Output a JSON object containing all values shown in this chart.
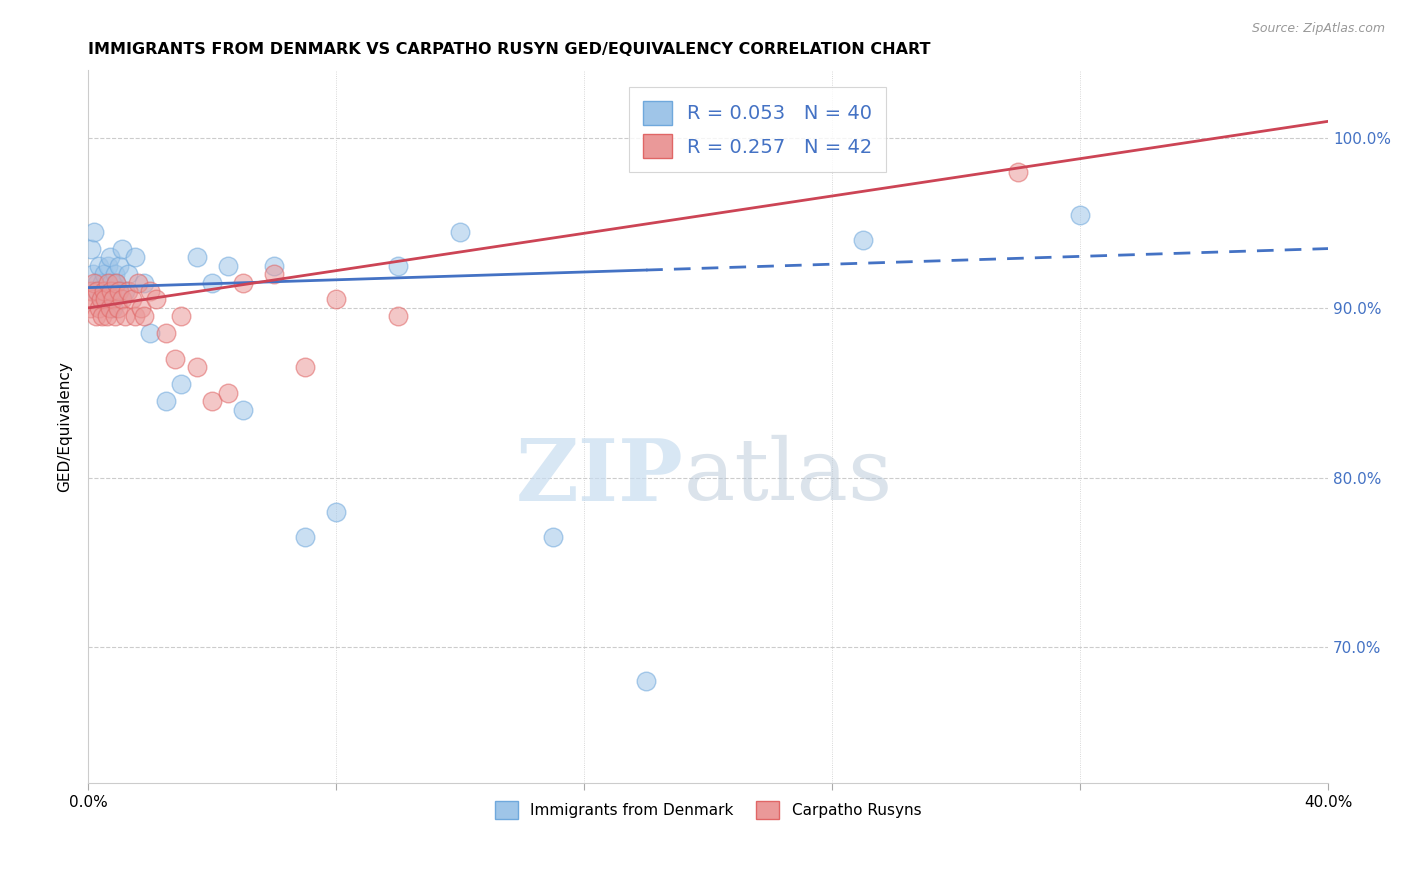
{
  "title": "IMMIGRANTS FROM DENMARK VS CARPATHO RUSYN GED/EQUIVALENCY CORRELATION CHART",
  "source": "Source: ZipAtlas.com",
  "ylabel": "GED/Equivalency",
  "legend1_label": "Immigrants from Denmark",
  "legend2_label": "Carpatho Rusyns",
  "R1": 0.053,
  "N1": 40,
  "R2": 0.257,
  "N2": 42,
  "xlim": [
    0.0,
    40.0
  ],
  "ylim": [
    62.0,
    104.0
  ],
  "yticks": [
    70.0,
    80.0,
    90.0,
    100.0
  ],
  "ytick_labels": [
    "70.0%",
    "80.0%",
    "90.0%",
    "100.0%"
  ],
  "xticks": [
    0.0,
    8.0,
    16.0,
    24.0,
    32.0,
    40.0
  ],
  "watermark_zip": "ZIP",
  "watermark_atlas": "atlas",
  "blue_color": "#9fc5e8",
  "pink_color": "#ea9999",
  "blue_edge_color": "#6fa8dc",
  "pink_edge_color": "#e06666",
  "blue_line_color": "#4472c4",
  "pink_line_color": "#cc4455",
  "denmark_x": [
    0.1,
    0.15,
    0.2,
    0.25,
    0.3,
    0.35,
    0.4,
    0.45,
    0.5,
    0.55,
    0.6,
    0.65,
    0.7,
    0.75,
    0.8,
    0.85,
    0.9,
    0.95,
    1.0,
    1.1,
    1.2,
    1.3,
    1.5,
    1.8,
    2.0,
    2.5,
    3.0,
    3.5,
    4.0,
    4.5,
    5.0,
    6.0,
    7.0,
    8.0,
    10.0,
    12.0,
    15.0,
    18.0,
    25.0,
    32.0
  ],
  "denmark_y": [
    93.5,
    92.0,
    94.5,
    91.0,
    91.5,
    92.5,
    90.5,
    91.5,
    92.0,
    91.0,
    90.5,
    92.5,
    93.0,
    91.5,
    90.0,
    92.0,
    91.5,
    91.0,
    92.5,
    93.5,
    91.0,
    92.0,
    93.0,
    91.5,
    88.5,
    84.5,
    85.5,
    93.0,
    91.5,
    92.5,
    84.0,
    92.5,
    76.5,
    78.0,
    92.5,
    94.5,
    76.5,
    68.0,
    94.0,
    95.5
  ],
  "rusyn_x": [
    0.05,
    0.1,
    0.15,
    0.2,
    0.25,
    0.3,
    0.35,
    0.4,
    0.45,
    0.5,
    0.55,
    0.6,
    0.65,
    0.7,
    0.75,
    0.8,
    0.85,
    0.9,
    0.95,
    1.0,
    1.1,
    1.2,
    1.3,
    1.4,
    1.5,
    1.6,
    1.7,
    1.8,
    2.0,
    2.2,
    2.5,
    2.8,
    3.0,
    3.5,
    4.0,
    4.5,
    5.0,
    6.0,
    7.0,
    8.0,
    10.0,
    30.0
  ],
  "rusyn_y": [
    90.0,
    91.0,
    90.5,
    91.5,
    89.5,
    91.0,
    90.0,
    90.5,
    89.5,
    91.0,
    90.5,
    89.5,
    91.5,
    90.0,
    91.0,
    90.5,
    89.5,
    91.5,
    90.0,
    91.0,
    90.5,
    89.5,
    91.0,
    90.5,
    89.5,
    91.5,
    90.0,
    89.5,
    91.0,
    90.5,
    88.5,
    87.0,
    89.5,
    86.5,
    84.5,
    85.0,
    91.5,
    92.0,
    86.5,
    90.5,
    89.5,
    98.0
  ],
  "trend_blue_x0": 0.0,
  "trend_blue_y0": 91.2,
  "trend_blue_x1": 40.0,
  "trend_blue_y1": 93.5,
  "trend_blue_solid_end": 18.0,
  "trend_pink_x0": 0.0,
  "trend_pink_y0": 90.0,
  "trend_pink_x1": 40.0,
  "trend_pink_y1": 101.0
}
